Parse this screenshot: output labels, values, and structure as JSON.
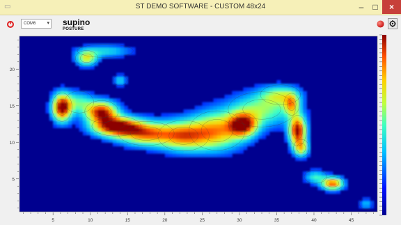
{
  "window": {
    "title": "ST DEMO SOFTWARE - CUSTOM 48x24",
    "min_glyph": "–",
    "max_glyph": "□",
    "close_glyph": "×"
  },
  "toolbar": {
    "port_value": "COM6",
    "profile_title": "supino",
    "profile_subtitle": "POSTURE",
    "icons": [
      "disconnect-icon",
      "record-icon",
      "settings-icon"
    ],
    "accent_red": "#e02020"
  },
  "chart_data": {
    "type": "heatmap",
    "xlim": [
      0.5,
      48.5
    ],
    "ylim": [
      0.5,
      24.5
    ],
    "x_ticks": [
      5,
      10,
      15,
      20,
      25,
      30,
      35,
      40,
      45
    ],
    "y_ticks": [
      5,
      10,
      15,
      20
    ],
    "grid": false,
    "colorbar": true,
    "colormap": "jet",
    "blobs": [
      {
        "x": 9.5,
        "y": 21.5,
        "sx": 1.0,
        "sy": 0.7,
        "v": 0.55
      },
      {
        "x": 12,
        "y": 22.5,
        "sx": 2.5,
        "sy": 0.6,
        "v": 0.3
      },
      {
        "x": 14,
        "y": 18.5,
        "sx": 0.6,
        "sy": 0.5,
        "v": 0.3
      },
      {
        "x": 6.2,
        "y": 14.8,
        "sx": 0.9,
        "sy": 1.3,
        "v": 1.0
      },
      {
        "x": 11.5,
        "y": 14.2,
        "sx": 1.5,
        "sy": 1.0,
        "v": 0.9
      },
      {
        "x": 8.5,
        "y": 15.5,
        "sx": 1.3,
        "sy": 1.0,
        "v": 0.35
      },
      {
        "x": 13.5,
        "y": 12.2,
        "sx": 2.2,
        "sy": 0.9,
        "v": 1.0
      },
      {
        "x": 17.5,
        "y": 11.2,
        "sx": 2.5,
        "sy": 1.1,
        "v": 0.7
      },
      {
        "x": 22.5,
        "y": 10.9,
        "sx": 2.3,
        "sy": 1.4,
        "v": 0.65
      },
      {
        "x": 27,
        "y": 11.6,
        "sx": 2.5,
        "sy": 1.8,
        "v": 0.65
      },
      {
        "x": 30.5,
        "y": 12.4,
        "sx": 1.3,
        "sy": 1.1,
        "v": 0.8
      },
      {
        "x": 33,
        "y": 14.5,
        "sx": 3.0,
        "sy": 1.6,
        "v": 0.45
      },
      {
        "x": 35.5,
        "y": 16.5,
        "sx": 1.8,
        "sy": 0.9,
        "v": 0.4
      },
      {
        "x": 37,
        "y": 15.2,
        "sx": 0.7,
        "sy": 1.0,
        "v": 0.5
      },
      {
        "x": 37.8,
        "y": 11.6,
        "sx": 0.8,
        "sy": 1.4,
        "v": 0.95
      },
      {
        "x": 38.3,
        "y": 9.2,
        "sx": 0.7,
        "sy": 0.8,
        "v": 0.5
      },
      {
        "x": 40.2,
        "y": 5.3,
        "sx": 1.0,
        "sy": 0.6,
        "v": 0.35
      },
      {
        "x": 42.5,
        "y": 4.4,
        "sx": 1.0,
        "sy": 0.6,
        "v": 0.8
      },
      {
        "x": 47,
        "y": 1.6,
        "sx": 0.6,
        "sy": 0.5,
        "v": 0.25
      }
    ]
  }
}
